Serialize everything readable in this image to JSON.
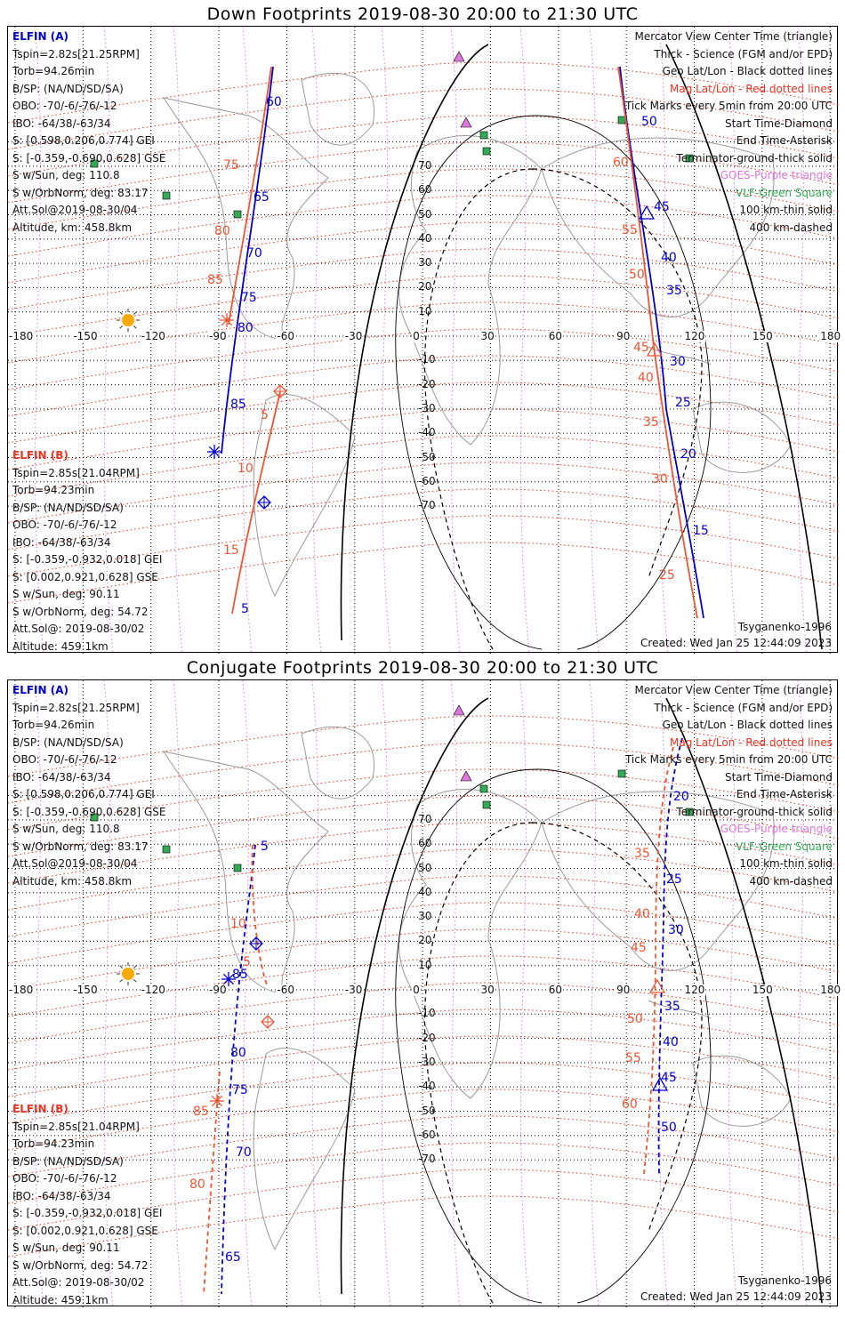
{
  "panels": [
    {
      "id": "down",
      "title": "Down Footprints 2019-08-30 20:00 to 21:30 UTC",
      "elfin_a": {
        "header": "ELFIN (A)",
        "lines": [
          "Tspin=2.82s[21.25RPM]",
          "Torb=94.26min",
          "B/SP: (NA/ND/SD/SA)",
          "OBO: -70/-6/-76/-12",
          "IBO: -64/38/-63/34",
          "S: [0.598,0.206,0.774] GEI",
          "S: [-0.359,-0.690,0.628] GSE",
          "S w/Sun, deg: 110.8",
          "S w/OrbNorm, deg: 83.17",
          "Att.Sol@2019-08-30/04",
          "Altitude, km: 458.8km"
        ]
      },
      "elfin_b": {
        "header": "ELFIN (B)",
        "lines": [
          "Tspin=2.85s[21.04RPM]",
          "Torb=94.23min",
          "B/SP: (NA/ND/SD/SA)",
          "OBO: -70/-6/-76/-12",
          "IBO: -64/38/-63/34",
          "S: [-0.359,-0.932,0.018] GEI",
          "S: [0.002,0.921,0.628] GSE",
          "S w/Sun, deg: 90.11",
          "S w/OrbNorm, deg: 54.72",
          "Att.Sol@: 2019-08-30/02",
          "Altitude: 459.1km"
        ]
      },
      "model": "Tsyganenko-1996",
      "created": "Created: Wed Jan 25 12:44:09 2023",
      "blue_minutes": [
        "60",
        "65",
        "70",
        "75",
        "80",
        "85",
        "5"
      ],
      "red_minutes": [
        "75",
        "80",
        "85",
        "5",
        "10",
        "15"
      ],
      "right_blue_minutes": [
        "50",
        "45",
        "40",
        "35",
        "30",
        "25",
        "20",
        "15"
      ],
      "right_red_minutes": [
        "60",
        "55",
        "50",
        "45",
        "40",
        "35",
        "30",
        "25"
      ]
    },
    {
      "id": "conjugate",
      "title": "Conjugate Footprints 2019-08-30 20:00 to 21:30 UTC",
      "elfin_a": {
        "header": "ELFIN (A)",
        "lines": [
          "Tspin=2.82s[21.25RPM]",
          "Torb=94.26min",
          "B/SP: (NA/ND/SD/SA)",
          "OBO: -70/-6/-76/-12",
          "IBO: -64/38/-63/34",
          "S: [0.598,0.206,0.774] GEI",
          "S: [-0.359,-0.690,0.628] GSE",
          "S w/Sun, deg: 110.8",
          "S w/OrbNorm, deg: 83.17",
          "Att.Sol@2019-08-30/04",
          "Altitude, km: 458.8km"
        ]
      },
      "elfin_b": {
        "header": "ELFIN (B)",
        "lines": [
          "Tspin=2.85s[21.04RPM]",
          "Torb=94.23min",
          "B/SP: (NA/ND/SD/SA)",
          "OBO: -70/-6/-76/-12",
          "IBO: -64/38/-63/34",
          "S: [-0.359,-0.932,0.018] GEI",
          "S: [0.002,0.921,0.628] GSE",
          "S w/Sun, deg: 90.11",
          "S w/OrbNorm, deg: 54.72",
          "Att.Sol@: 2019-08-30/02",
          "Altitude: 459.1km"
        ]
      },
      "model": "Tsyganenko-1996",
      "created": "Created: Wed Jan 25 12:44:09 2023",
      "blue_minutes": [
        "5",
        "85",
        "80",
        "75",
        "70",
        "65"
      ],
      "red_minutes": [
        "10",
        "5",
        "85",
        "80"
      ],
      "right_blue_minutes": [
        "20",
        "25",
        "30",
        "35",
        "40",
        "45",
        "50"
      ],
      "right_red_minutes": [
        "35",
        "40",
        "45",
        "50",
        "55",
        "60"
      ]
    }
  ],
  "legend": [
    {
      "text": "Mercator View Center Time (triangle)",
      "color": "#111111"
    },
    {
      "text": "Thick - Science (FGM and/or EPD)",
      "color": "#111111"
    },
    {
      "text": "Geo Lat/Lon - Black dotted lines",
      "color": "#111111"
    },
    {
      "text": "Mag Lat/Lon - Red dotted lines",
      "color": "#ee3322"
    },
    {
      "text": "Tick Marks every 5min from 20:00 UTC",
      "color": "#111111"
    },
    {
      "text": "Start Time-Diamond",
      "color": "#111111"
    },
    {
      "text": "End Time-Asterisk",
      "color": "#111111"
    },
    {
      "text": "Terminator-ground-thick solid",
      "color": "#111111"
    },
    {
      "text": "GOES-Purple triangle",
      "color": "#dd77dd"
    },
    {
      "text": "VLF-Green Square",
      "color": "#33aa55"
    },
    {
      "text": "100 km-thin solid",
      "color": "#111111"
    },
    {
      "text": "400 km-dashed",
      "color": "#111111"
    }
  ],
  "axes": {
    "lon_ticks": [
      "-180",
      "-150",
      "-120",
      "-90",
      "-60",
      "-30",
      "0",
      "30",
      "60",
      "90",
      "120",
      "150",
      "180"
    ],
    "lat_ticks": [
      "70",
      "60",
      "50",
      "40",
      "30",
      "20",
      "10",
      "0",
      "-10",
      "-20",
      "-30",
      "-40",
      "-50",
      "-60",
      "-70"
    ]
  },
  "colors": {
    "elfin_a": "#0000cc",
    "elfin_b": "#ee5533",
    "mag_grid": "#ee3322",
    "geo_grid": "#000000",
    "goes": "#dd77dd",
    "vlf": "#33aa55",
    "sun": "#ffaa00"
  },
  "icons": {
    "sun": "sun-icon",
    "goes": "triangle-icon",
    "vlf": "square-icon"
  }
}
